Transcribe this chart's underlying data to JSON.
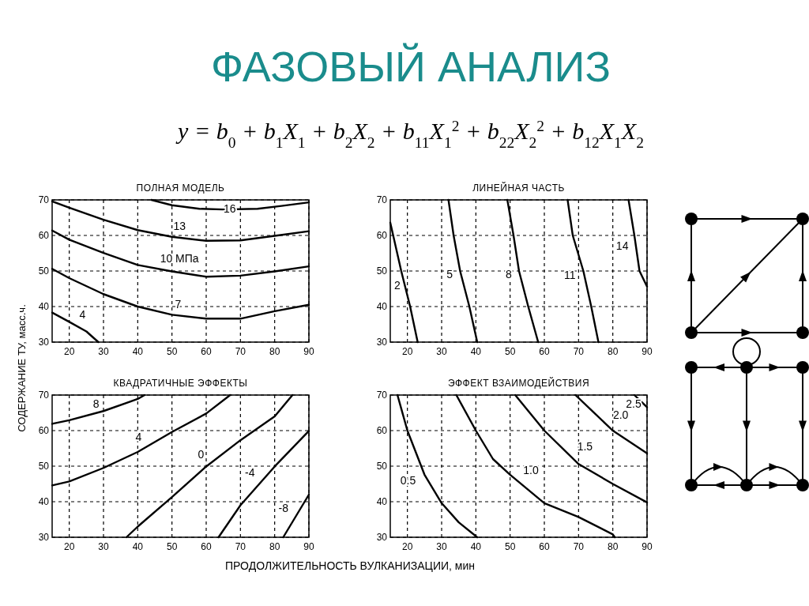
{
  "chart_data": [
    {
      "type": "other",
      "title": "ФАЗОВЫЙ АНАЛИЗ",
      "subtitle": "y = b$_{0}$ + b$_{1}$X$_{1}$ + b$_{2}$X$_{2}$ + b$_{11}$X$_{1}$$^{2}$ + b$_{22}$X$_{2}$$^{2}$ + b$_{12}$X$_{1}$X$_{2}$",
      "ylabel": "СОДЕРЖАНИЕ ТУ, масс.ч.",
      "xlabel": "ПРОДОЛЖИТЕЛЬНОСТЬ ВУЛКАНИЗАЦИИ, мин"
    },
    {
      "type": "line",
      "title": "ПОЛНАЯ МОДЕЛЬ",
      "xlim": [
        15,
        90
      ],
      "ylim": [
        30,
        70
      ],
      "xticks": [
        20,
        30,
        40,
        50,
        60,
        70,
        80,
        90
      ],
      "yticks": [
        30,
        40,
        50,
        60,
        70
      ],
      "grid": true,
      "line_style": "solid",
      "series": [
        {
          "name": "16",
          "color": "#000000",
          "x": [
            44,
            50,
            58,
            65,
            75,
            82,
            90
          ],
          "values": [
            70,
            68.5,
            67.5,
            67.3,
            67.5,
            68.3,
            69.3
          ]
        },
        {
          "name": "13",
          "color": "#000000",
          "x": [
            15,
            20,
            30,
            40,
            50,
            60,
            70,
            80,
            90
          ],
          "values": [
            69.6,
            67.8,
            64.4,
            61.5,
            59.6,
            58.5,
            58.6,
            59.9,
            61.2
          ]
        },
        {
          "name": "10 МПа",
          "color": "#000000",
          "x": [
            15,
            20,
            30,
            40,
            50,
            60,
            70,
            80,
            90
          ],
          "values": [
            61.4,
            58.8,
            55.1,
            51.7,
            49.9,
            48.4,
            48.7,
            49.9,
            51.3
          ]
        },
        {
          "name": "7",
          "color": "#000000",
          "x": [
            15,
            20,
            30,
            40,
            50,
            60,
            70,
            80,
            90
          ],
          "values": [
            50.6,
            48,
            43.5,
            40,
            37.7,
            36.6,
            36.6,
            38.7,
            40.5
          ]
        },
        {
          "name": "4",
          "color": "#000000",
          "x": [
            15,
            20,
            25,
            28.5
          ],
          "values": [
            38.3,
            35.7,
            33,
            30
          ]
        }
      ]
    },
    {
      "type": "line",
      "title": "ЛИНЕЙНАЯ ЧАСТЬ",
      "xlim": [
        15,
        90
      ],
      "ylim": [
        30,
        70
      ],
      "xticks": [
        20,
        30,
        40,
        50,
        60,
        70,
        80,
        90
      ],
      "yticks": [
        30,
        40,
        50,
        60,
        70
      ],
      "grid": true,
      "line_style": "solid",
      "series": [
        {
          "name": "2",
          "color": "#000000",
          "x": [
            15,
            18.2,
            20.8,
            23
          ],
          "values": [
            63.6,
            50,
            40,
            30
          ]
        },
        {
          "name": "5",
          "color": "#000000",
          "x": [
            32,
            33.5,
            35.4,
            38.1,
            40.4
          ],
          "values": [
            70,
            60,
            50,
            40,
            30
          ]
        },
        {
          "name": "8",
          "color": "#000000",
          "x": [
            49.2,
            51,
            52.6,
            55.3,
            58.2
          ],
          "values": [
            70,
            60,
            50,
            40,
            30
          ]
        },
        {
          "name": "11",
          "color": "#000000",
          "x": [
            66.8,
            68.3,
            71.4,
            73.7,
            75.8
          ],
          "values": [
            70,
            60,
            50,
            40,
            30
          ]
        },
        {
          "name": "14",
          "color": "#000000",
          "x": [
            84.6,
            86.3,
            87.8,
            90
          ],
          "values": [
            70,
            60,
            50,
            45.6
          ]
        }
      ]
    },
    {
      "type": "line",
      "title": "КВАДРАТИЧНЫЕ ЭФФЕКТЫ",
      "xlim": [
        15,
        90
      ],
      "ylim": [
        30,
        70
      ],
      "xticks": [
        20,
        30,
        40,
        50,
        60,
        70,
        80,
        90
      ],
      "yticks": [
        30,
        40,
        50,
        60,
        70
      ],
      "grid": true,
      "line_style": "solid",
      "series": [
        {
          "name": "8",
          "color": "#000000",
          "x": [
            15,
            20,
            30,
            40,
            42
          ],
          "values": [
            61.9,
            62.9,
            65.5,
            68.9,
            70
          ]
        },
        {
          "name": "4",
          "color": "#000000",
          "x": [
            15,
            20,
            30,
            40,
            50,
            60,
            67
          ],
          "values": [
            44.6,
            45.7,
            49.5,
            54,
            59.6,
            64.8,
            70
          ]
        },
        {
          "name": "0",
          "color": "#000000",
          "x": [
            36.7,
            40,
            50,
            60,
            70,
            80,
            85.2
          ],
          "values": [
            30,
            33,
            41.3,
            49.9,
            57.3,
            64,
            70
          ]
        },
        {
          "name": "-4",
          "color": "#000000",
          "x": [
            63.6,
            70,
            80,
            90
          ],
          "values": [
            30,
            39,
            49.9,
            59.9
          ]
        },
        {
          "name": "-8",
          "color": "#000000",
          "x": [
            82.5,
            90
          ],
          "values": [
            30,
            42
          ]
        }
      ]
    },
    {
      "type": "line",
      "title": "ЭФФЕКТ ВЗАИМОДЕЙСТВИЯ",
      "xlim": [
        15,
        90
      ],
      "ylim": [
        30,
        70
      ],
      "xticks": [
        20,
        30,
        40,
        50,
        60,
        70,
        80,
        90
      ],
      "yticks": [
        30,
        40,
        50,
        60,
        70
      ],
      "grid": true,
      "line_style": "solid",
      "series": [
        {
          "name": "0.5",
          "color": "#000000",
          "x": [
            17.1,
            20,
            25,
            30,
            35,
            40.4
          ],
          "values": [
            70,
            60,
            47.6,
            39.6,
            34.2,
            30
          ]
        },
        {
          "name": "1.0",
          "color": "#000000",
          "x": [
            34.3,
            40,
            45,
            50,
            60,
            70,
            80,
            80.6
          ],
          "values": [
            70,
            60,
            52,
            47.6,
            39.6,
            35.7,
            30.8,
            30
          ]
        },
        {
          "name": "1.5",
          "color": "#000000",
          "x": [
            51.5,
            60,
            70,
            80,
            90
          ],
          "values": [
            70,
            60,
            50.6,
            45,
            39.8
          ]
        },
        {
          "name": "2.0",
          "color": "#000000",
          "x": [
            69.1,
            80,
            90
          ],
          "values": [
            70,
            60,
            53.6
          ]
        },
        {
          "name": "2.5",
          "color": "#000000",
          "x": [
            86.3,
            90
          ],
          "values": [
            70,
            66.6
          ]
        }
      ]
    }
  ]
}
